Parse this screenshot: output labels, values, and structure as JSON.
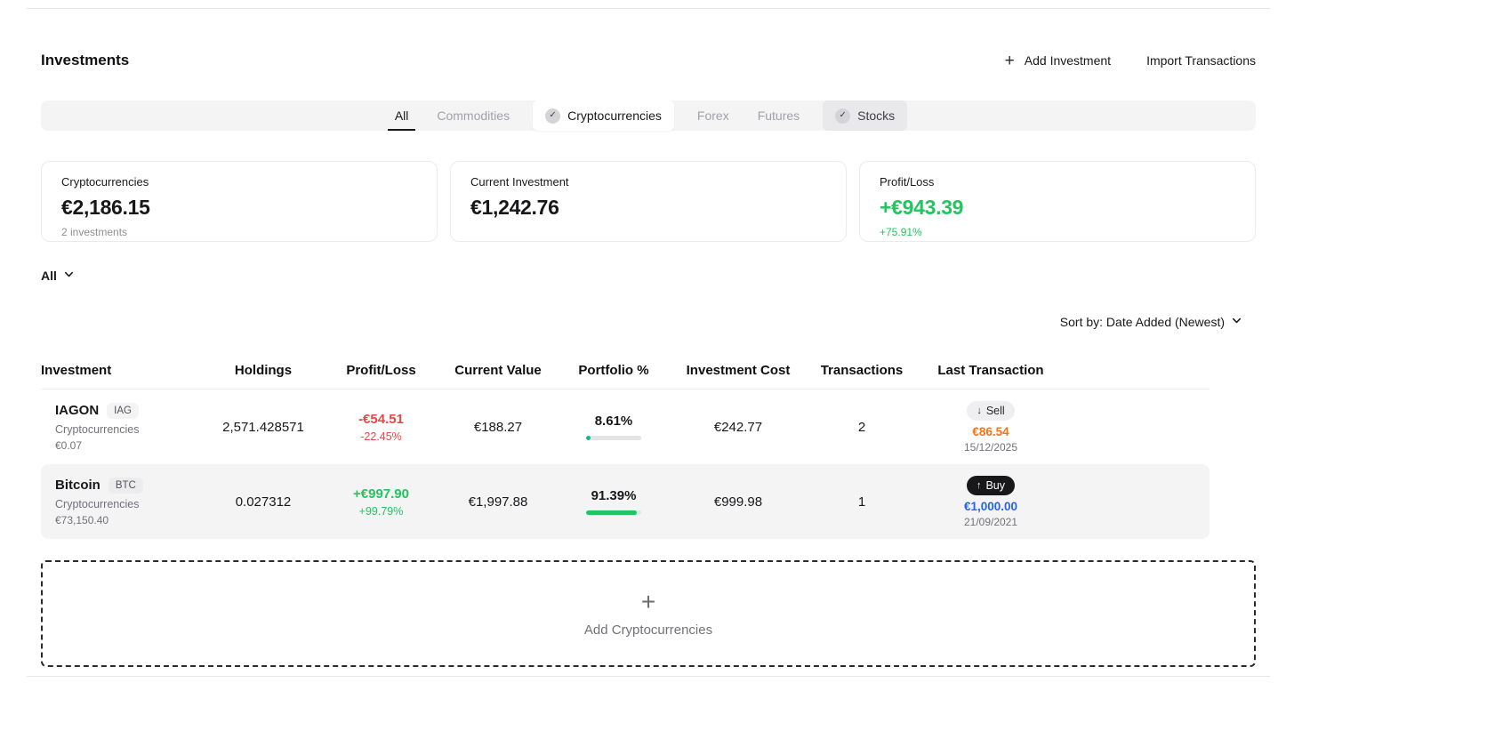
{
  "page": {
    "title": "Investments",
    "actions": {
      "add_investment": "Add Investment",
      "import_transactions": "Import Transactions"
    }
  },
  "tabs": [
    {
      "label": "All",
      "state": "active"
    },
    {
      "label": "Commodities",
      "state": "default"
    },
    {
      "label": "Cryptocurrencies",
      "state": "selected"
    },
    {
      "label": "Forex",
      "state": "default"
    },
    {
      "label": "Futures",
      "state": "default"
    },
    {
      "label": "Stocks",
      "state": "selected"
    }
  ],
  "summary_cards": [
    {
      "label": "Cryptocurrencies",
      "value": "€2,186.15",
      "sub": "2 investments"
    },
    {
      "label": "Current Investment",
      "value": "€1,242.76",
      "sub": ""
    },
    {
      "label": "Profit/Loss",
      "value": "+€943.39",
      "sub": "+75.91%"
    }
  ],
  "filters": {
    "group_label": "All"
  },
  "sort": {
    "label": "Sort by: Date Added (Newest)"
  },
  "table": {
    "columns": [
      "Investment",
      "Holdings",
      "Profit/Loss",
      "Current Value",
      "Portfolio %",
      "Investment Cost",
      "Transactions",
      "Last Transaction"
    ],
    "rows": [
      {
        "name": "IAGON",
        "ticker": "IAG",
        "category": "Cryptocurrencies",
        "price": "€0.07",
        "holdings": "2,571.428571",
        "profit": "-€54.51",
        "profit_pct": "-22.45%",
        "profit_direction": "loss",
        "current_value": "€188.27",
        "portfolio_pct": "8.61%",
        "portfolio_fill": 8.61,
        "cost": "€242.77",
        "transactions": "2",
        "last_transaction": {
          "type": "Sell",
          "direction": "down",
          "amount": "€86.54",
          "date": "15/12/2025"
        }
      },
      {
        "name": "Bitcoin",
        "ticker": "BTC",
        "category": "Cryptocurrencies",
        "price": "€73,150.40",
        "holdings": "0.027312",
        "profit": "+€997.90",
        "profit_pct": "+99.79%",
        "profit_direction": "gain",
        "current_value": "€1,997.88",
        "portfolio_pct": "91.39%",
        "portfolio_fill": 91.39,
        "cost": "€999.98",
        "transactions": "1",
        "last_transaction": {
          "type": "Buy",
          "direction": "up",
          "amount": "€1,000.00",
          "date": "21/09/2021"
        }
      }
    ]
  },
  "add_box": {
    "label": "Add Cryptocurrencies"
  },
  "icons": {
    "add": "+",
    "sell_arrow": "↓",
    "buy_arrow": "↑",
    "check": "✓"
  },
  "colors": {
    "gain_green": "#22c55e",
    "loss_red": "#ef4444",
    "sell_amount_orange": "#f97316",
    "buy_amount_blue": "#2563eb",
    "portfolio_bar_teal": "#10b981",
    "portfolio_bar_green": "#22c55e",
    "row_highlight": "#f4f4f5",
    "tabbar_bg": "#f4f4f5",
    "buy_badge_bg": "#18181b"
  }
}
